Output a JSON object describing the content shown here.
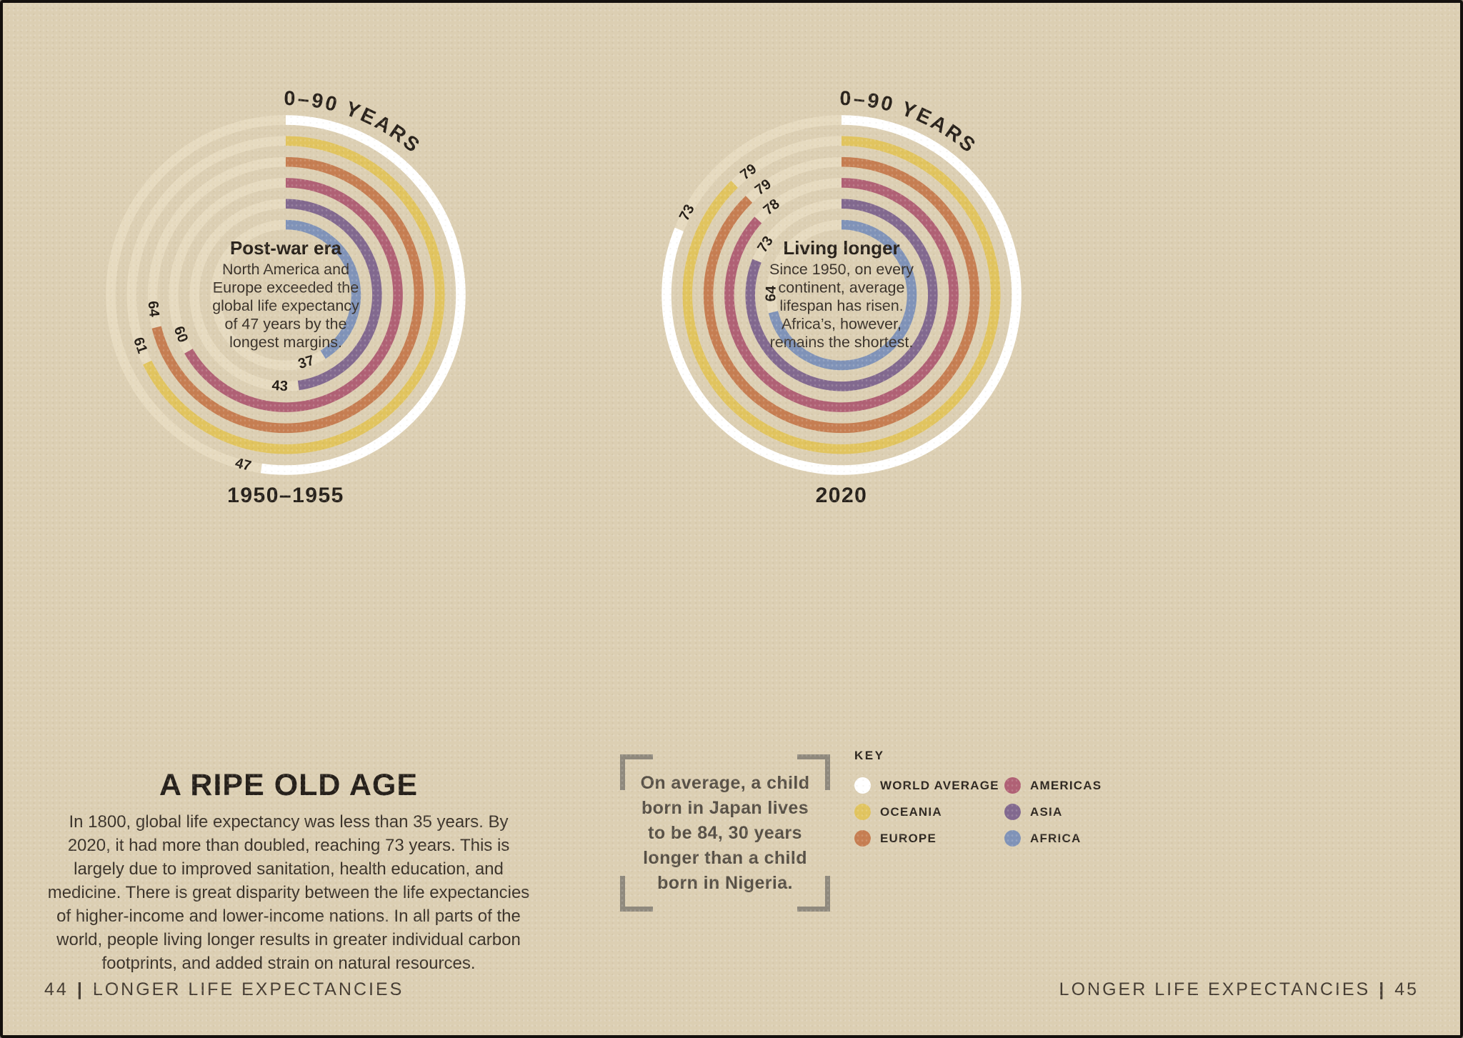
{
  "theme": {
    "background": "#dccfb3",
    "track": "#e7dcc1",
    "ink": "#2a231c",
    "value_label": "#241d16",
    "body_text": "#3b332a",
    "quote_text": "#575046",
    "bracket": "#8f897d",
    "footer_text": "#463d33"
  },
  "main": {
    "heading": "A RIPE OLD AGE",
    "paragraph": "In 1800, global life expectancy was less than 35 years. By 2020, it had more than doubled, reaching 73 years. This is largely due to improved sanitation, health education, and medicine. There is great disparity between the life expectancies of higher-income and lower-income nations. In all parts of the world, people living longer results in greater individual carbon footprints, and added strain on natural resources."
  },
  "quote": {
    "text": "On average, a child\nborn in Japan lives\nto be 84, 30 years\nlonger than a child\nborn in Nigeria."
  },
  "legend": {
    "title": "KEY",
    "items": [
      {
        "label": "WORLD AVERAGE",
        "color": "#ffffff"
      },
      {
        "label": "OCEANIA",
        "color": "#e1c45f"
      },
      {
        "label": "EUROPE",
        "color": "#c67e52"
      },
      {
        "label": "AMERICAS",
        "color": "#b06175"
      },
      {
        "label": "ASIA",
        "color": "#82698f"
      },
      {
        "label": "AFRICA",
        "color": "#8093b8"
      }
    ]
  },
  "footers": {
    "left": {
      "page_no": "44",
      "divider": "|",
      "title": "LONGER LIFE EXPECTANCIES"
    },
    "right": {
      "title": "LONGER LIFE EXPECTANCIES",
      "divider": "|",
      "page_no": "45"
    }
  },
  "chart_data": [
    {
      "type": "radial-bar",
      "scale_label": "0–90 YEARS",
      "period": "1950–1955",
      "center_title": "Post-war era",
      "center_lines": [
        "North America and",
        "Europe exceeded the",
        "global life expectancy",
        "of 47 years by the",
        "longest margins."
      ],
      "axis": {
        "min_years": 0,
        "max_years": 90,
        "full_circle_years": 90,
        "start": "12-o'clock",
        "direction": "clockwise"
      },
      "series": [
        {
          "name": "WORLD AVERAGE",
          "value": 47,
          "color": "#ffffff"
        },
        {
          "name": "OCEANIA",
          "value": 61,
          "color": "#e1c45f"
        },
        {
          "name": "EUROPE",
          "value": 64,
          "color": "#c67e52"
        },
        {
          "name": "AMERICAS",
          "value": 60,
          "color": "#b06175"
        },
        {
          "name": "ASIA",
          "value": 43,
          "color": "#82698f"
        },
        {
          "name": "AFRICA",
          "value": 37,
          "color": "#8093b8"
        }
      ]
    },
    {
      "type": "radial-bar",
      "scale_label": "0–90 YEARS",
      "period": "2020",
      "center_title": "Living longer",
      "center_lines": [
        "Since 1950, on every",
        "continent, average",
        "lifespan has risen.",
        "Africa’s, however,",
        "remains the shortest."
      ],
      "axis": {
        "min_years": 0,
        "max_years": 90,
        "full_circle_years": 90,
        "start": "12-o'clock",
        "direction": "clockwise"
      },
      "series": [
        {
          "name": "WORLD AVERAGE",
          "value": 73,
          "color": "#ffffff"
        },
        {
          "name": "OCEANIA",
          "value": 79,
          "color": "#e1c45f"
        },
        {
          "name": "EUROPE",
          "value": 79,
          "color": "#c67e52"
        },
        {
          "name": "AMERICAS",
          "value": 78,
          "color": "#b06175"
        },
        {
          "name": "ASIA",
          "value": 73,
          "color": "#82698f"
        },
        {
          "name": "AFRICA",
          "value": 64,
          "color": "#8093b8"
        }
      ]
    }
  ]
}
